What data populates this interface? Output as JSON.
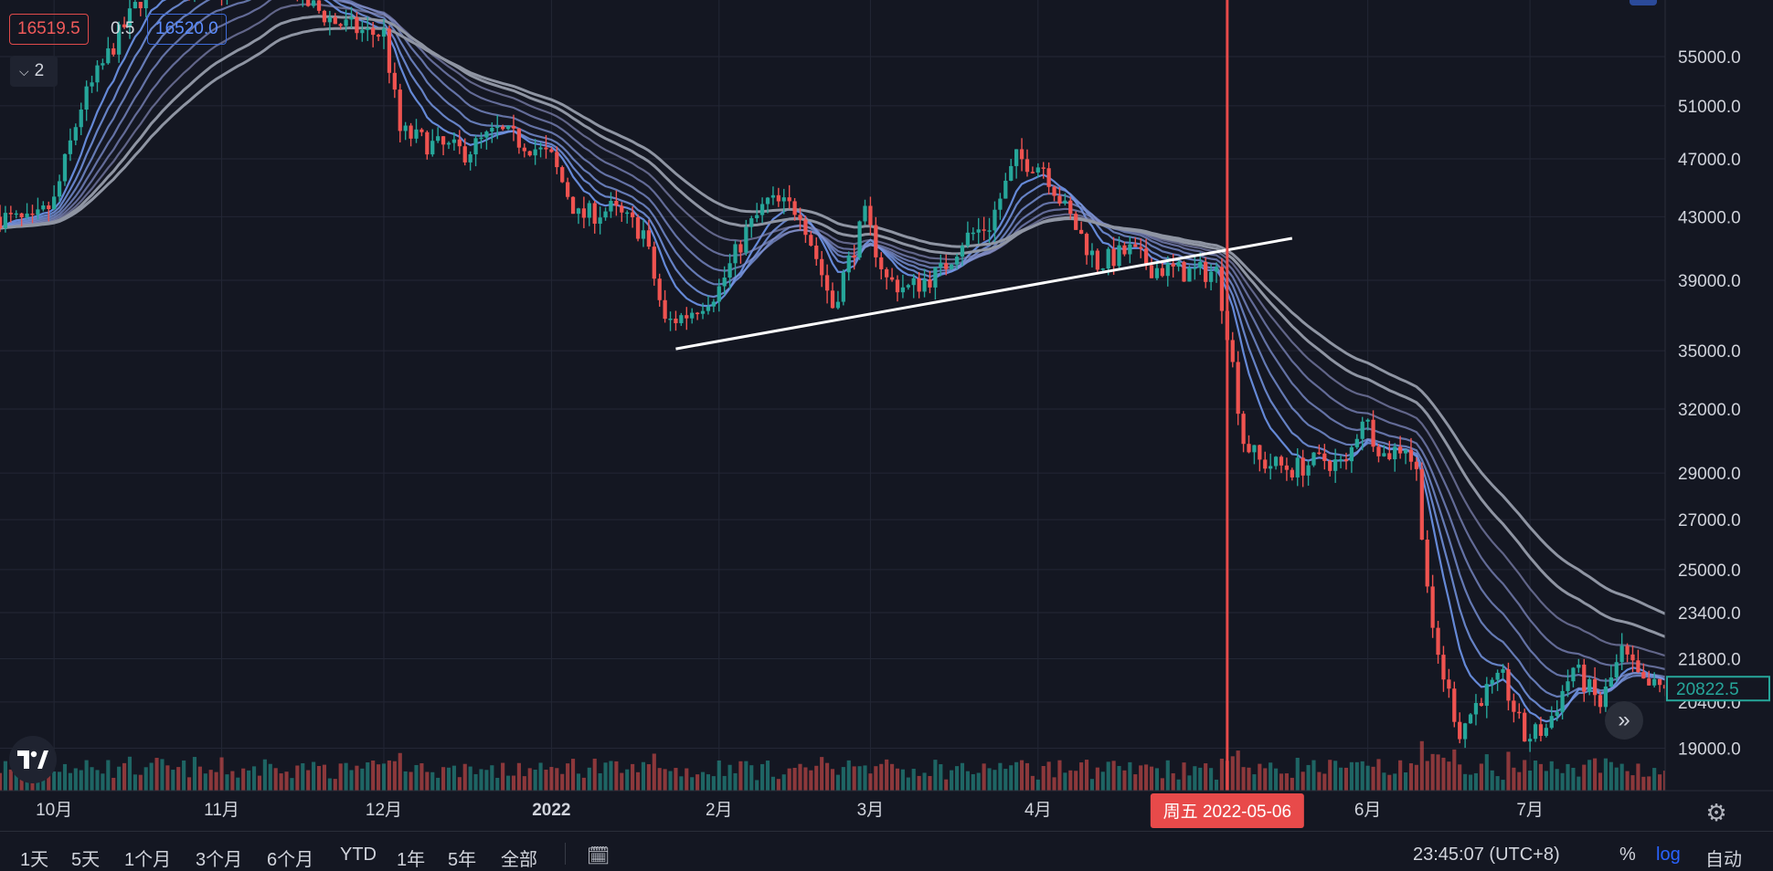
{
  "colors": {
    "background": "#141722",
    "grid": "#232735",
    "up": "#26a69a",
    "down": "#ef5350",
    "ribbon_fast": "#9bb8f2",
    "ribbon_slow": "#8f95a3",
    "trendline": "#ffffff",
    "cursor": "#e84a4a",
    "last_price": "#26a69a"
  },
  "header": {
    "sell_price": "16519.5",
    "spread": "0.5",
    "buy_price": "16520.0",
    "collapse_count": "2"
  },
  "chart_data": {
    "type": "candlestick",
    "y_scale": "log",
    "ylim": [
      17800,
      60000
    ],
    "price_ticks": [
      55000,
      51000,
      47000,
      43000,
      39000,
      35000,
      32000,
      29000,
      27000,
      25000,
      23400,
      21800,
      20400,
      19000
    ],
    "price_tick_labels": [
      "55000.0",
      "51000.0",
      "47000.0",
      "43000.0",
      "39000.0",
      "35000.0",
      "32000.0",
      "29000.0",
      "27000.0",
      "25000.0",
      "23400.0",
      "21800.0",
      "20400.0",
      "19000.0"
    ],
    "x_range": [
      "2021-09-21",
      "2022-07-26"
    ],
    "time_ticks": [
      {
        "label": "10月",
        "date": "2021-10-01"
      },
      {
        "label": "11月",
        "date": "2021-11-01"
      },
      {
        "label": "12月",
        "date": "2021-12-01"
      },
      {
        "label": "2022",
        "date": "2022-01-01"
      },
      {
        "label": "2月",
        "date": "2022-02-01"
      },
      {
        "label": "3月",
        "date": "2022-03-01"
      },
      {
        "label": "4月",
        "date": "2022-04-01"
      },
      {
        "label": "6月",
        "date": "2022-06-01"
      },
      {
        "label": "7月",
        "date": "2022-07-01"
      }
    ],
    "close_path": [
      [
        "2021-09-21",
        43000
      ],
      [
        "2021-09-27",
        42500
      ],
      [
        "2021-10-01",
        44000
      ],
      [
        "2021-10-06",
        51000
      ],
      [
        "2021-10-12",
        56000
      ],
      [
        "2021-10-18",
        61000
      ],
      [
        "2021-10-24",
        62000
      ],
      [
        "2021-10-30",
        61500
      ],
      [
        "2021-11-05",
        61000
      ],
      [
        "2021-11-10",
        65000
      ],
      [
        "2021-11-16",
        60000
      ],
      [
        "2021-11-22",
        58000
      ],
      [
        "2021-11-28",
        57000
      ],
      [
        "2021-12-01",
        57000
      ],
      [
        "2021-12-04",
        49000
      ],
      [
        "2021-12-10",
        48000
      ],
      [
        "2021-12-16",
        47500
      ],
      [
        "2021-12-22",
        49000
      ],
      [
        "2021-12-28",
        48000
      ],
      [
        "2022-01-01",
        47000
      ],
      [
        "2022-01-06",
        43000
      ],
      [
        "2022-01-12",
        43500
      ],
      [
        "2022-01-18",
        42000
      ],
      [
        "2022-01-22",
        36500
      ],
      [
        "2022-01-26",
        37000
      ],
      [
        "2022-02-01",
        38500
      ],
      [
        "2022-02-06",
        42000
      ],
      [
        "2022-02-10",
        44000
      ],
      [
        "2022-02-16",
        43500
      ],
      [
        "2022-02-22",
        37500
      ],
      [
        "2022-02-28",
        43000
      ],
      [
        "2022-03-04",
        39000
      ],
      [
        "2022-03-08",
        38500
      ],
      [
        "2022-03-14",
        39500
      ],
      [
        "2022-03-18",
        41500
      ],
      [
        "2022-03-23",
        42500
      ],
      [
        "2022-03-28",
        47000
      ],
      [
        "2022-04-02",
        46500
      ],
      [
        "2022-04-06",
        43500
      ],
      [
        "2022-04-12",
        40000
      ],
      [
        "2022-04-18",
        40800
      ],
      [
        "2022-04-22",
        39800
      ],
      [
        "2022-04-28",
        39500
      ],
      [
        "2022-05-04",
        39500
      ],
      [
        "2022-05-06",
        36200
      ],
      [
        "2022-05-09",
        30500
      ],
      [
        "2022-05-12",
        29500
      ],
      [
        "2022-05-18",
        29200
      ],
      [
        "2022-05-24",
        29600
      ],
      [
        "2022-05-28",
        29300
      ],
      [
        "2022-05-31",
        31700
      ],
      [
        "2022-06-04",
        29800
      ],
      [
        "2022-06-08",
        30300
      ],
      [
        "2022-06-10",
        29000
      ],
      [
        "2022-06-13",
        22500
      ],
      [
        "2022-06-18",
        19500
      ],
      [
        "2022-06-22",
        20600
      ],
      [
        "2022-06-26",
        21100
      ],
      [
        "2022-06-30",
        19300
      ],
      [
        "2022-07-04",
        19600
      ],
      [
        "2022-07-09",
        21500
      ],
      [
        "2022-07-14",
        20300
      ],
      [
        "2022-07-18",
        22000
      ],
      [
        "2022-07-22",
        20900
      ],
      [
        "2022-07-26",
        20822.5
      ]
    ],
    "ribbon_periods": [
      8,
      12,
      17,
      23,
      30,
      38,
      47,
      57
    ],
    "trendline": {
      "from": [
        "2022-01-24",
        35100
      ],
      "to": [
        "2022-05-18",
        41600
      ]
    },
    "cursor": {
      "date": "2022-05-06",
      "label": "周五 2022-05-06"
    },
    "last_price": {
      "value": 20822.5,
      "label": "20822.5"
    }
  },
  "bottom_bar": {
    "ranges": [
      "1天",
      "5天",
      "1个月",
      "3个月",
      "6个月",
      "YTD",
      "1年",
      "5年",
      "全部"
    ],
    "clock": "23:45:07 (UTC+8)",
    "percent": "%",
    "log": "log",
    "auto": "自动"
  }
}
